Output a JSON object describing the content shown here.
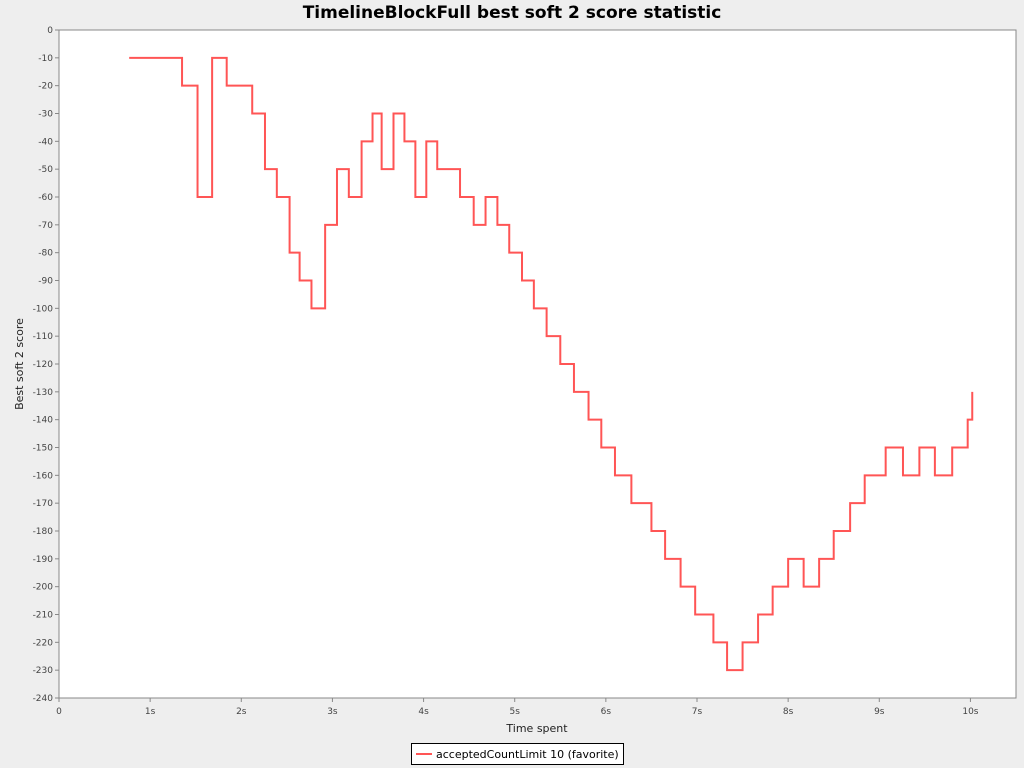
{
  "chart_data": {
    "type": "line",
    "title": "TimelineBlockFull best soft 2 score statistic",
    "xlabel": "Time spent",
    "ylabel": "Best soft 2 score",
    "xlim": [
      0,
      10.5
    ],
    "ylim": [
      -240,
      0
    ],
    "x_ticks": [
      {
        "value": 0,
        "label": "0"
      },
      {
        "value": 1,
        "label": "1s"
      },
      {
        "value": 2,
        "label": "2s"
      },
      {
        "value": 3,
        "label": "3s"
      },
      {
        "value": 4,
        "label": "4s"
      },
      {
        "value": 5,
        "label": "5s"
      },
      {
        "value": 6,
        "label": "6s"
      },
      {
        "value": 7,
        "label": "7s"
      },
      {
        "value": 8,
        "label": "8s"
      },
      {
        "value": 9,
        "label": "9s"
      },
      {
        "value": 10,
        "label": "10s"
      }
    ],
    "y_ticks": [
      0,
      -10,
      -20,
      -30,
      -40,
      -50,
      -60,
      -70,
      -80,
      -90,
      -100,
      -110,
      -120,
      -130,
      -140,
      -150,
      -160,
      -170,
      -180,
      -190,
      -200,
      -210,
      -220,
      -230,
      -240
    ],
    "grid": false,
    "legend_position": "bottom-center",
    "step": true,
    "series": [
      {
        "name": "acceptedCountLimit 10 (favorite)",
        "color": "#ff5555",
        "points": [
          [
            0.77,
            -10
          ],
          [
            1.35,
            -20
          ],
          [
            1.52,
            -60
          ],
          [
            1.68,
            -10
          ],
          [
            1.84,
            -20
          ],
          [
            2.12,
            -30
          ],
          [
            2.26,
            -50
          ],
          [
            2.39,
            -60
          ],
          [
            2.53,
            -80
          ],
          [
            2.64,
            -90
          ],
          [
            2.77,
            -100
          ],
          [
            2.92,
            -70
          ],
          [
            3.05,
            -50
          ],
          [
            3.18,
            -60
          ],
          [
            3.32,
            -40
          ],
          [
            3.44,
            -30
          ],
          [
            3.54,
            -50
          ],
          [
            3.67,
            -30
          ],
          [
            3.79,
            -40
          ],
          [
            3.91,
            -60
          ],
          [
            4.03,
            -40
          ],
          [
            4.15,
            -50
          ],
          [
            4.4,
            -60
          ],
          [
            4.55,
            -70
          ],
          [
            4.68,
            -60
          ],
          [
            4.81,
            -70
          ],
          [
            4.94,
            -80
          ],
          [
            5.08,
            -90
          ],
          [
            5.21,
            -100
          ],
          [
            5.35,
            -110
          ],
          [
            5.5,
            -120
          ],
          [
            5.65,
            -130
          ],
          [
            5.81,
            -140
          ],
          [
            5.95,
            -150
          ],
          [
            6.1,
            -160
          ],
          [
            6.28,
            -170
          ],
          [
            6.5,
            -180
          ],
          [
            6.65,
            -190
          ],
          [
            6.82,
            -200
          ],
          [
            6.98,
            -210
          ],
          [
            7.18,
            -220
          ],
          [
            7.33,
            -230
          ],
          [
            7.5,
            -220
          ],
          [
            7.67,
            -210
          ],
          [
            7.83,
            -200
          ],
          [
            8.0,
            -190
          ],
          [
            8.17,
            -200
          ],
          [
            8.34,
            -190
          ],
          [
            8.5,
            -180
          ],
          [
            8.68,
            -170
          ],
          [
            8.84,
            -160
          ],
          [
            9.07,
            -150
          ],
          [
            9.26,
            -160
          ],
          [
            9.44,
            -150
          ],
          [
            9.61,
            -160
          ],
          [
            9.8,
            -150
          ],
          [
            9.97,
            -140
          ],
          [
            10.02,
            -130
          ]
        ]
      }
    ]
  }
}
